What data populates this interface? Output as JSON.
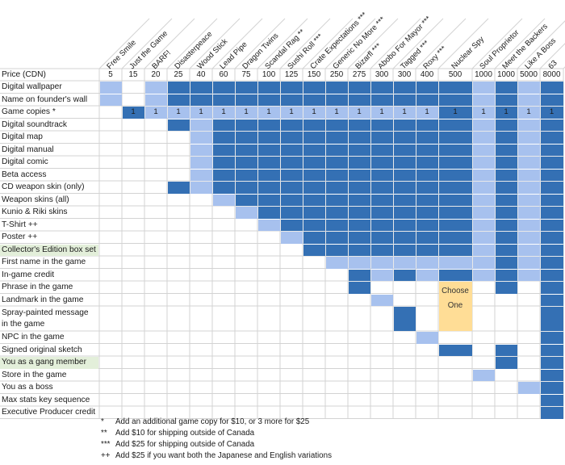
{
  "colors": {
    "dark": "#3470b4",
    "light": "#a7c1ee",
    "choose": "#ffdd96",
    "highlight": "#e3efda",
    "grid": "#d3d3d3"
  },
  "tiers": [
    "Free Smile",
    "Just the Game",
    "BARF!",
    "Disasterpeace",
    "Wood Stick",
    "Lead Pipe",
    "Dragon Twins",
    "Scandal Rag **",
    "Sushi Roll ***",
    "Crate Expectations ***",
    "Generic No More ***",
    "Bizarfl ***",
    "Abobo For Mayor ***",
    "Tagged ***",
    "Roxy ***",
    "Nuclear Spy",
    "Soul Proprietor",
    "Meet the Backers",
    "Like A Boss",
    "63"
  ],
  "price_label": "Price (CDN)",
  "prices": [
    "5",
    "15",
    "20",
    "25",
    "40",
    "60",
    "75",
    "100",
    "125",
    "150",
    "250",
    "275",
    "300",
    "300",
    "400",
    "500",
    "1000",
    "1000",
    "5000",
    "8000"
  ],
  "choose_text": [
    "Choose",
    "One"
  ],
  "rows": [
    {
      "label": "Digital wallpaper",
      "hl": false,
      "cells": [
        2,
        0,
        2,
        1,
        1,
        1,
        1,
        1,
        1,
        1,
        1,
        1,
        1,
        1,
        1,
        1,
        2,
        1,
        2,
        1
      ]
    },
    {
      "label": "Name on founder's wall",
      "hl": false,
      "cells": [
        2,
        0,
        2,
        1,
        1,
        1,
        1,
        1,
        1,
        1,
        1,
        1,
        1,
        1,
        1,
        1,
        2,
        1,
        2,
        1
      ]
    },
    {
      "label": "Game copies *",
      "hl": false,
      "cells": [
        0,
        1,
        2,
        2,
        2,
        2,
        2,
        2,
        2,
        2,
        2,
        2,
        2,
        2,
        2,
        1,
        2,
        1,
        2,
        1
      ],
      "ones": [
        0,
        1,
        1,
        1,
        1,
        1,
        1,
        1,
        1,
        1,
        1,
        1,
        1,
        1,
        1,
        1,
        1,
        1,
        1,
        1
      ]
    },
    {
      "label": "Digital soundtrack",
      "hl": false,
      "cells": [
        0,
        0,
        0,
        1,
        2,
        1,
        1,
        1,
        1,
        1,
        1,
        1,
        1,
        1,
        1,
        1,
        2,
        1,
        2,
        1
      ]
    },
    {
      "label": "Digital map",
      "hl": false,
      "cells": [
        0,
        0,
        0,
        0,
        2,
        1,
        1,
        1,
        1,
        1,
        1,
        1,
        1,
        1,
        1,
        1,
        2,
        1,
        2,
        1
      ]
    },
    {
      "label": "Digital manual",
      "hl": false,
      "cells": [
        0,
        0,
        0,
        0,
        2,
        1,
        1,
        1,
        1,
        1,
        1,
        1,
        1,
        1,
        1,
        1,
        2,
        1,
        2,
        1
      ]
    },
    {
      "label": "Digital comic",
      "hl": false,
      "cells": [
        0,
        0,
        0,
        0,
        2,
        1,
        1,
        1,
        1,
        1,
        1,
        1,
        1,
        1,
        1,
        1,
        2,
        1,
        2,
        1
      ]
    },
    {
      "label": "Beta access",
      "hl": false,
      "cells": [
        0,
        0,
        0,
        0,
        2,
        1,
        1,
        1,
        1,
        1,
        1,
        1,
        1,
        1,
        1,
        1,
        2,
        1,
        2,
        1
      ]
    },
    {
      "label": "CD weapon skin (only)",
      "hl": false,
      "cells": [
        0,
        0,
        0,
        1,
        2,
        1,
        1,
        1,
        1,
        1,
        1,
        1,
        1,
        1,
        1,
        1,
        2,
        1,
        2,
        1
      ]
    },
    {
      "label": "Weapon skins (all)",
      "hl": false,
      "cells": [
        0,
        0,
        0,
        0,
        0,
        2,
        1,
        1,
        1,
        1,
        1,
        1,
        1,
        1,
        1,
        1,
        2,
        1,
        2,
        1
      ]
    },
    {
      "label": "Kunio & Riki skins",
      "hl": false,
      "cells": [
        0,
        0,
        0,
        0,
        0,
        0,
        2,
        1,
        1,
        1,
        1,
        1,
        1,
        1,
        1,
        1,
        2,
        1,
        2,
        1
      ]
    },
    {
      "label": "T-Shirt ++",
      "hl": false,
      "cells": [
        0,
        0,
        0,
        0,
        0,
        0,
        0,
        2,
        1,
        1,
        1,
        1,
        1,
        1,
        1,
        1,
        2,
        1,
        2,
        1
      ]
    },
    {
      "label": "Poster ++",
      "hl": false,
      "cells": [
        0,
        0,
        0,
        0,
        0,
        0,
        0,
        0,
        2,
        1,
        1,
        1,
        1,
        1,
        1,
        1,
        2,
        1,
        2,
        1
      ]
    },
    {
      "label": "Collector's Edition box set",
      "hl": true,
      "cells": [
        0,
        0,
        0,
        0,
        0,
        0,
        0,
        0,
        0,
        1,
        1,
        1,
        1,
        1,
        1,
        1,
        2,
        1,
        2,
        1
      ]
    },
    {
      "label": "First name in the game",
      "hl": false,
      "cells": [
        0,
        0,
        0,
        0,
        0,
        0,
        0,
        0,
        0,
        0,
        2,
        2,
        2,
        2,
        2,
        2,
        2,
        1,
        2,
        1
      ]
    },
    {
      "label": "In-game credit",
      "hl": false,
      "cells": [
        0,
        0,
        0,
        0,
        0,
        0,
        0,
        0,
        0,
        0,
        0,
        1,
        2,
        1,
        2,
        1,
        2,
        1,
        2,
        1
      ]
    },
    {
      "label": "Phrase in the game",
      "hl": false,
      "cells": [
        0,
        0,
        0,
        0,
        0,
        0,
        0,
        0,
        0,
        0,
        0,
        1,
        0,
        0,
        0,
        3,
        0,
        1,
        0,
        1
      ]
    },
    {
      "label": "Landmark in the game",
      "hl": false,
      "cells": [
        0,
        0,
        0,
        0,
        0,
        0,
        0,
        0,
        0,
        0,
        0,
        0,
        2,
        0,
        0,
        3,
        0,
        0,
        0,
        1
      ]
    },
    {
      "label": "Spray-painted message in the game",
      "hl": false,
      "tall": true,
      "cells": [
        0,
        0,
        0,
        0,
        0,
        0,
        0,
        0,
        0,
        0,
        0,
        0,
        0,
        1,
        0,
        3,
        0,
        0,
        0,
        1
      ]
    },
    {
      "label": "NPC in the game",
      "hl": false,
      "cells": [
        0,
        0,
        0,
        0,
        0,
        0,
        0,
        0,
        0,
        0,
        0,
        0,
        0,
        0,
        2,
        0,
        0,
        0,
        0,
        1
      ]
    },
    {
      "label": "Signed original sketch",
      "hl": false,
      "cells": [
        0,
        0,
        0,
        0,
        0,
        0,
        0,
        0,
        0,
        0,
        0,
        0,
        0,
        0,
        0,
        1,
        0,
        1,
        0,
        1
      ]
    },
    {
      "label": "You as a gang member",
      "hl": true,
      "cells": [
        0,
        0,
        0,
        0,
        0,
        0,
        0,
        0,
        0,
        0,
        0,
        0,
        0,
        0,
        0,
        0,
        0,
        1,
        0,
        1
      ]
    },
    {
      "label": "Store in the game",
      "hl": false,
      "cells": [
        0,
        0,
        0,
        0,
        0,
        0,
        0,
        0,
        0,
        0,
        0,
        0,
        0,
        0,
        0,
        0,
        2,
        0,
        0,
        1
      ]
    },
    {
      "label": "You as a boss",
      "hl": false,
      "cells": [
        0,
        0,
        0,
        0,
        0,
        0,
        0,
        0,
        0,
        0,
        0,
        0,
        0,
        0,
        0,
        0,
        0,
        0,
        2,
        1
      ]
    },
    {
      "label": "Max stats key sequence",
      "hl": false,
      "cells": [
        0,
        0,
        0,
        0,
        0,
        0,
        0,
        0,
        0,
        0,
        0,
        0,
        0,
        0,
        0,
        0,
        0,
        0,
        0,
        1
      ]
    },
    {
      "label": "Executive Producer credit",
      "hl": false,
      "cells": [
        0,
        0,
        0,
        0,
        0,
        0,
        0,
        0,
        0,
        0,
        0,
        0,
        0,
        0,
        0,
        0,
        0,
        0,
        0,
        1
      ]
    }
  ],
  "footnotes": [
    {
      "mark": "*",
      "text": "Add an additional game copy for $10, or 3 more for $25"
    },
    {
      "mark": "**",
      "text": "Add $10 for shipping outside of Canada"
    },
    {
      "mark": "***",
      "text": "Add $25 for shipping outside of Canada"
    },
    {
      "mark": "++",
      "text": "Add $25 if you want both the Japanese and English variations"
    }
  ]
}
